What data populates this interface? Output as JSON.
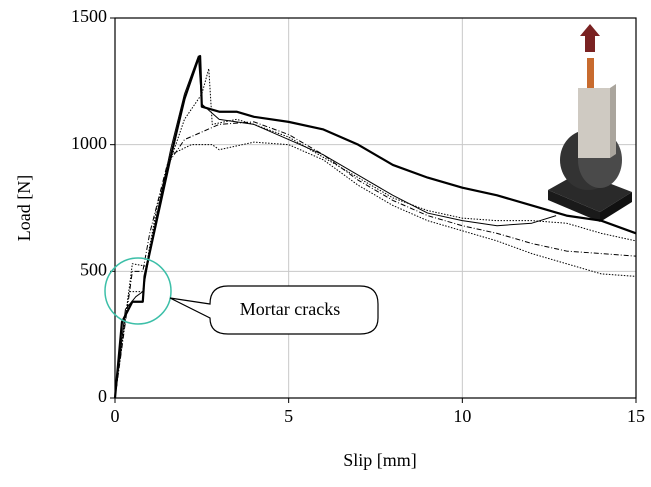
{
  "chart_data": {
    "type": "line",
    "xlabel": "Slip [mm]",
    "ylabel": "Load [N]",
    "xlim": [
      0,
      15
    ],
    "ylim": [
      0,
      1500
    ],
    "xticks": [
      0,
      5,
      10,
      15
    ],
    "yticks": [
      0,
      500,
      1000,
      1500
    ],
    "grid": true,
    "annotation": "Mortar cracks",
    "series": [
      {
        "color": "#000000",
        "style": "bold",
        "x": [
          0,
          0.2,
          0.5,
          0.8,
          0.85,
          1.2,
          1.6,
          2.0,
          2.4,
          2.45,
          2.5,
          3,
          3.5,
          4,
          5,
          6,
          7,
          8,
          9,
          10,
          11,
          12,
          13,
          14,
          15
        ],
        "values": [
          0,
          300,
          380,
          380,
          480,
          700,
          950,
          1180,
          1340,
          1350,
          1150,
          1130,
          1130,
          1110,
          1090,
          1060,
          1000,
          920,
          870,
          830,
          800,
          760,
          720,
          700,
          650
        ]
      },
      {
        "color": "#000000",
        "style": "solid",
        "x": [
          0,
          0.3,
          0.6,
          0.8,
          1.2,
          1.6,
          2.0,
          2.4,
          2.5,
          3,
          4,
          5,
          6,
          7,
          8,
          9,
          10,
          11,
          12,
          12.7
        ],
        "values": [
          0,
          350,
          400,
          420,
          720,
          980,
          1200,
          1350,
          1160,
          1100,
          1080,
          1020,
          960,
          880,
          800,
          730,
          700,
          680,
          690,
          720
        ]
      },
      {
        "color": "#000000",
        "style": "dotted",
        "x": [
          0,
          0.4,
          0.8,
          1.0,
          1.5,
          2.0,
          2.5,
          2.7,
          2.8,
          3.5,
          4,
          5,
          6,
          7,
          8,
          9,
          10,
          11,
          12,
          13,
          14,
          15
        ],
        "values": [
          0,
          420,
          420,
          600,
          900,
          1100,
          1200,
          1300,
          1080,
          1100,
          1080,
          1030,
          950,
          870,
          790,
          740,
          710,
          700,
          700,
          690,
          650,
          620
        ]
      },
      {
        "color": "#000000",
        "style": "dashdot",
        "x": [
          0,
          0.5,
          0.8,
          1.0,
          1.5,
          2.0,
          3,
          4,
          5,
          6,
          7,
          8,
          9,
          10,
          11,
          12,
          13,
          14,
          15
        ],
        "values": [
          0,
          500,
          500,
          650,
          920,
          1020,
          1080,
          1090,
          1040,
          960,
          860,
          780,
          720,
          680,
          650,
          610,
          580,
          570,
          560
        ]
      },
      {
        "color": "#000000",
        "style": "dotted",
        "x": [
          0,
          0.5,
          0.9,
          1.2,
          1.6,
          2.2,
          2.8,
          3,
          4,
          5,
          6,
          7,
          8,
          9,
          10,
          11,
          12,
          13,
          14,
          15
        ],
        "values": [
          0,
          530,
          520,
          750,
          960,
          1000,
          1000,
          980,
          1010,
          1000,
          940,
          840,
          760,
          700,
          660,
          620,
          570,
          530,
          490,
          480
        ]
      }
    ]
  }
}
